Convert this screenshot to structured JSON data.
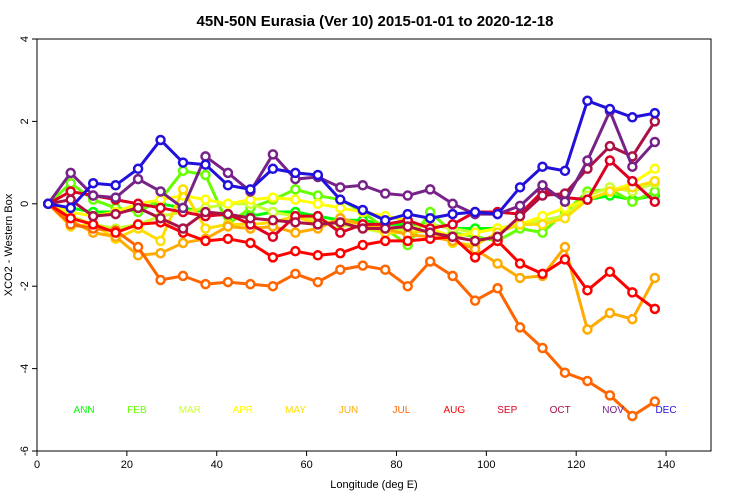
{
  "chart_data": {
    "type": "line",
    "title": "45N-50N Eurasia (Ver 10)   2015-01-01 to 2020-12-18",
    "xlabel": "Longitude (deg E)",
    "ylabel": "XCO2 - Western Box",
    "xlim": [
      0,
      150
    ],
    "ylim": [
      -6,
      4
    ],
    "xticks": [
      0,
      20,
      40,
      60,
      80,
      100,
      120,
      140
    ],
    "yticks": [
      -6,
      -4,
      -2,
      0,
      2,
      4
    ],
    "x": [
      2.5,
      7.5,
      12.5,
      17.5,
      22.5,
      27.5,
      32.5,
      37.5,
      42.5,
      47.5,
      52.5,
      57.5,
      62.5,
      67.5,
      72.5,
      77.5,
      82.5,
      87.5,
      92.5,
      97.5,
      102.5,
      107.5,
      112.5,
      117.5,
      122.5,
      127.5,
      132.5,
      137.5
    ],
    "series": [
      {
        "name": "ANN",
        "color": "#00ff00",
        "values": [
          0,
          -0.1,
          -0.2,
          -0.2,
          -0.1,
          0,
          -0.1,
          -0.2,
          -0.3,
          -0.3,
          -0.2,
          -0.2,
          -0.3,
          -0.4,
          -0.4,
          -0.5,
          -0.5,
          -0.5,
          -0.6,
          -0.6,
          -0.6,
          -0.5,
          -0.4,
          -0.3,
          0.1,
          0.2,
          0.1,
          0.2
        ]
      },
      {
        "name": "FEB",
        "color": "#66ff00",
        "values": [
          0,
          0.5,
          0.1,
          -0.1,
          -0.2,
          0.1,
          0.8,
          0.7,
          -0.5,
          -0.1,
          0.1,
          0.35,
          0.2,
          0.1,
          -0.2,
          -0.6,
          -1.0,
          -0.2,
          -0.7,
          -0.8,
          -0.9,
          -0.6,
          -0.7,
          -0.2,
          0.3,
          0.35,
          0.05,
          0.3
        ]
      },
      {
        "name": "MAR",
        "color": "#ccff33",
        "values": [
          0,
          -0.3,
          -0.5,
          -0.6,
          -0.5,
          -0.3,
          -0.2,
          -0.1,
          0,
          0,
          -0.2,
          -0.3,
          -0.4,
          -0.5,
          -0.6,
          -0.7,
          -0.6,
          -0.5,
          -0.6,
          -0.7,
          -0.6,
          -0.5,
          -0.4,
          -0.3,
          0.2,
          0.4,
          0.3,
          0.5
        ]
      },
      {
        "name": "APR",
        "color": "#ffff00",
        "values": [
          0,
          -0.2,
          -0.3,
          -0.2,
          0,
          0.1,
          0.2,
          0.1,
          0,
          0.1,
          0.15,
          0.1,
          0,
          -0.1,
          -0.2,
          -0.3,
          -0.4,
          -0.6,
          -0.8,
          -0.7,
          -0.6,
          -0.5,
          -0.3,
          -0.1,
          0.1,
          0.3,
          0.5,
          0.85
        ]
      },
      {
        "name": "MAY",
        "color": "#ffdd00",
        "values": [
          0,
          -0.55,
          -0.5,
          -0.85,
          -0.6,
          -0.9,
          0.35,
          -0.6,
          -0.5,
          -0.5,
          -0.45,
          -0.3,
          -0.5,
          -0.4,
          -0.5,
          -0.7,
          -0.7,
          -0.65,
          -0.95,
          -1.0,
          -0.7,
          -0.5,
          -0.5,
          -0.35,
          0.1,
          0.3,
          0.4,
          0.55
        ]
      },
      {
        "name": "JUN",
        "color": "#ffaa00",
        "values": [
          0,
          -0.4,
          -0.7,
          -0.8,
          -1.25,
          -1.2,
          -0.95,
          -0.85,
          -0.55,
          -0.6,
          -0.55,
          -0.7,
          -0.6,
          -0.35,
          -0.5,
          -0.6,
          -0.75,
          -0.8,
          -0.9,
          -1.1,
          -1.45,
          -1.8,
          -1.75,
          -1.05,
          -3.05,
          -2.65,
          -2.8,
          -1.8
        ]
      },
      {
        "name": "JUL",
        "color": "#ff6600",
        "values": [
          0,
          -0.5,
          -0.6,
          -0.65,
          -1.05,
          -1.85,
          -1.75,
          -1.95,
          -1.9,
          -1.95,
          -2.0,
          -1.7,
          -1.9,
          -1.6,
          -1.5,
          -1.6,
          -2.0,
          -1.4,
          -1.75,
          -2.35,
          -2.05,
          -3.0,
          -3.5,
          -4.1,
          -4.3,
          -4.65,
          -5.15,
          -4.8
        ]
      },
      {
        "name": "AUG",
        "color": "#ff0000",
        "values": [
          0,
          -0.35,
          -0.5,
          -0.7,
          -0.5,
          -0.45,
          -0.7,
          -0.9,
          -0.85,
          -0.95,
          -1.3,
          -1.15,
          -1.25,
          -1.2,
          -1.0,
          -0.9,
          -0.9,
          -0.85,
          -0.8,
          -1.3,
          -0.9,
          -1.45,
          -1.7,
          -1.35,
          -2.1,
          -1.65,
          -2.15,
          -2.55
        ]
      },
      {
        "name": "SEP",
        "color": "#dd0022",
        "values": [
          0,
          0.3,
          0.2,
          0.1,
          0,
          -0.1,
          -0.2,
          -0.3,
          -0.25,
          -0.5,
          -0.8,
          -0.3,
          -0.3,
          -0.7,
          -0.5,
          -0.5,
          -0.4,
          -0.6,
          -0.5,
          -0.2,
          -0.2,
          -0.25,
          0.3,
          0.15,
          0.1,
          1.05,
          0.55,
          0.05
        ]
      },
      {
        "name": "OCT",
        "color": "#aa1144",
        "values": [
          0,
          0.1,
          -0.3,
          -0.25,
          -0.1,
          -0.35,
          -0.6,
          -0.2,
          -0.25,
          -0.35,
          -0.4,
          -0.45,
          -0.5,
          -0.45,
          -0.6,
          -0.6,
          -0.55,
          -0.7,
          -0.8,
          -0.9,
          -0.8,
          -0.3,
          0.2,
          0.25,
          0.85,
          1.4,
          1.15,
          2.0
        ]
      },
      {
        "name": "NOV",
        "color": "#772288",
        "values": [
          0,
          0.75,
          0.2,
          0.15,
          0.6,
          0.3,
          -0.1,
          1.15,
          0.75,
          0.3,
          1.2,
          0.6,
          0.65,
          0.4,
          0.45,
          0.25,
          0.2,
          0.35,
          0,
          -0.25,
          -0.25,
          -0.05,
          0.45,
          0.05,
          1.05,
          2.25,
          0.9,
          1.5
        ]
      },
      {
        "name": "DEC",
        "color": "#2211dd",
        "values": [
          0,
          -0.1,
          0.5,
          0.45,
          0.85,
          1.55,
          1.0,
          0.95,
          0.45,
          0.35,
          0.85,
          0.75,
          0.7,
          0.1,
          -0.15,
          -0.4,
          -0.25,
          -0.35,
          -0.25,
          -0.2,
          -0.25,
          0.4,
          0.9,
          0.8,
          2.5,
          2.3,
          2.1,
          2.2
        ]
      }
    ],
    "legend_position": "bottom, inside plot",
    "grid": false
  }
}
